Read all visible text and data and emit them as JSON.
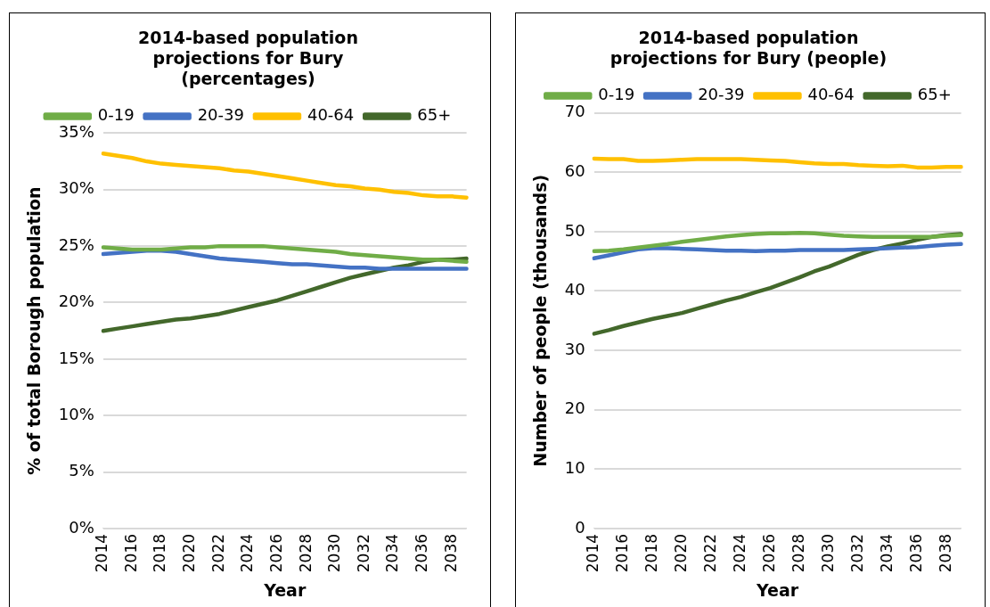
{
  "chart_data": [
    {
      "type": "line",
      "title": "2014-based population projections for Bury (percentages)",
      "xlabel": "Year",
      "ylabel": "% of total Borough population",
      "categories": [
        "2014",
        null,
        "2016",
        null,
        "2018",
        null,
        "2020",
        null,
        "2022",
        null,
        "2024",
        null,
        "2026",
        null,
        "2028",
        null,
        "2030",
        null,
        "2032",
        null,
        "2034",
        null,
        "2036",
        null,
        "2038",
        null
      ],
      "series": [
        {
          "name": "0-19",
          "color": "#70ad47",
          "values": [
            24.9,
            24.8,
            24.7,
            24.7,
            24.7,
            24.8,
            24.9,
            24.9,
            25.0,
            25.0,
            25.0,
            25.0,
            24.9,
            24.8,
            24.7,
            24.6,
            24.5,
            24.3,
            24.2,
            24.1,
            24.0,
            23.9,
            23.8,
            23.8,
            23.7,
            23.6
          ]
        },
        {
          "name": "20-39",
          "color": "#4472c4",
          "values": [
            24.3,
            24.4,
            24.5,
            24.6,
            24.6,
            24.5,
            24.3,
            24.1,
            23.9,
            23.8,
            23.7,
            23.6,
            23.5,
            23.4,
            23.4,
            23.3,
            23.2,
            23.1,
            23.1,
            23.0,
            23.0,
            23.0,
            23.0,
            23.0,
            23.0,
            23.0
          ]
        },
        {
          "name": "40-64",
          "color": "#ffc000",
          "values": [
            33.2,
            33.0,
            32.8,
            32.5,
            32.3,
            32.2,
            32.1,
            32.0,
            31.9,
            31.7,
            31.6,
            31.4,
            31.2,
            31.0,
            30.8,
            30.6,
            30.4,
            30.3,
            30.1,
            30.0,
            29.8,
            29.7,
            29.5,
            29.4,
            29.4,
            29.3
          ]
        },
        {
          "name": "65+",
          "color": "#43682b",
          "values": [
            17.5,
            17.7,
            17.9,
            18.1,
            18.3,
            18.5,
            18.6,
            18.8,
            19.0,
            19.3,
            19.6,
            19.9,
            20.2,
            20.6,
            21.0,
            21.4,
            21.8,
            22.2,
            22.5,
            22.8,
            23.1,
            23.3,
            23.6,
            23.8,
            23.8,
            23.9
          ]
        }
      ],
      "ylim": [
        0,
        35
      ],
      "yticks": [
        {
          "value": 0,
          "label": "0%"
        },
        {
          "value": 5,
          "label": "5%"
        },
        {
          "value": 10,
          "label": "10%"
        },
        {
          "value": 15,
          "label": "15%"
        },
        {
          "value": 20,
          "label": "20%"
        },
        {
          "value": 25,
          "label": "25%"
        },
        {
          "value": 30,
          "label": "30%"
        },
        {
          "value": 35,
          "label": "35%"
        }
      ],
      "grid": "y",
      "legend": "top",
      "marker": "none"
    },
    {
      "type": "line",
      "title": "2014-based population projections for Bury (people)",
      "xlabel": "Year",
      "ylabel": "Number of people (thousands)",
      "categories": [
        "2014",
        null,
        "2016",
        null,
        "2018",
        null,
        "2020",
        null,
        "2022",
        null,
        "2024",
        null,
        "2026",
        null,
        "2028",
        null,
        "2030",
        null,
        "2032",
        null,
        "2034",
        null,
        "2036",
        null,
        "2038",
        null
      ],
      "series": [
        {
          "name": "0-19",
          "color": "#70ad47",
          "values": [
            46.7,
            46.8,
            47.0,
            47.3,
            47.6,
            47.9,
            48.3,
            48.6,
            48.9,
            49.2,
            49.4,
            49.6,
            49.7,
            49.7,
            49.8,
            49.7,
            49.5,
            49.3,
            49.2,
            49.1,
            49.1,
            49.1,
            49.1,
            49.1,
            49.3,
            49.4
          ]
        },
        {
          "name": "20-39",
          "color": "#4472c4",
          "values": [
            45.5,
            46.0,
            46.5,
            47.0,
            47.2,
            47.2,
            47.1,
            47.0,
            46.9,
            46.8,
            46.8,
            46.7,
            46.8,
            46.8,
            46.9,
            46.9,
            46.9,
            46.9,
            47.0,
            47.1,
            47.2,
            47.3,
            47.4,
            47.6,
            47.8,
            47.9
          ]
        },
        {
          "name": "40-64",
          "color": "#ffc000",
          "values": [
            62.3,
            62.2,
            62.2,
            61.9,
            61.9,
            62.0,
            62.1,
            62.2,
            62.2,
            62.2,
            62.2,
            62.1,
            62.0,
            61.9,
            61.7,
            61.5,
            61.4,
            61.4,
            61.2,
            61.1,
            61.0,
            61.1,
            60.8,
            60.8,
            60.9,
            60.9
          ]
        },
        {
          "name": "65+",
          "color": "#43682b",
          "values": [
            32.8,
            33.4,
            34.1,
            34.7,
            35.3,
            35.8,
            36.3,
            37.0,
            37.7,
            38.4,
            39.0,
            39.8,
            40.5,
            41.4,
            42.3,
            43.3,
            44.1,
            45.1,
            46.1,
            46.9,
            47.5,
            48.0,
            48.6,
            49.1,
            49.4,
            49.6
          ]
        }
      ],
      "ylim": [
        0,
        70
      ],
      "yticks": [
        0,
        10,
        20,
        30,
        40,
        50,
        60,
        70
      ],
      "grid": "y",
      "legend": "top",
      "marker": "none"
    }
  ]
}
